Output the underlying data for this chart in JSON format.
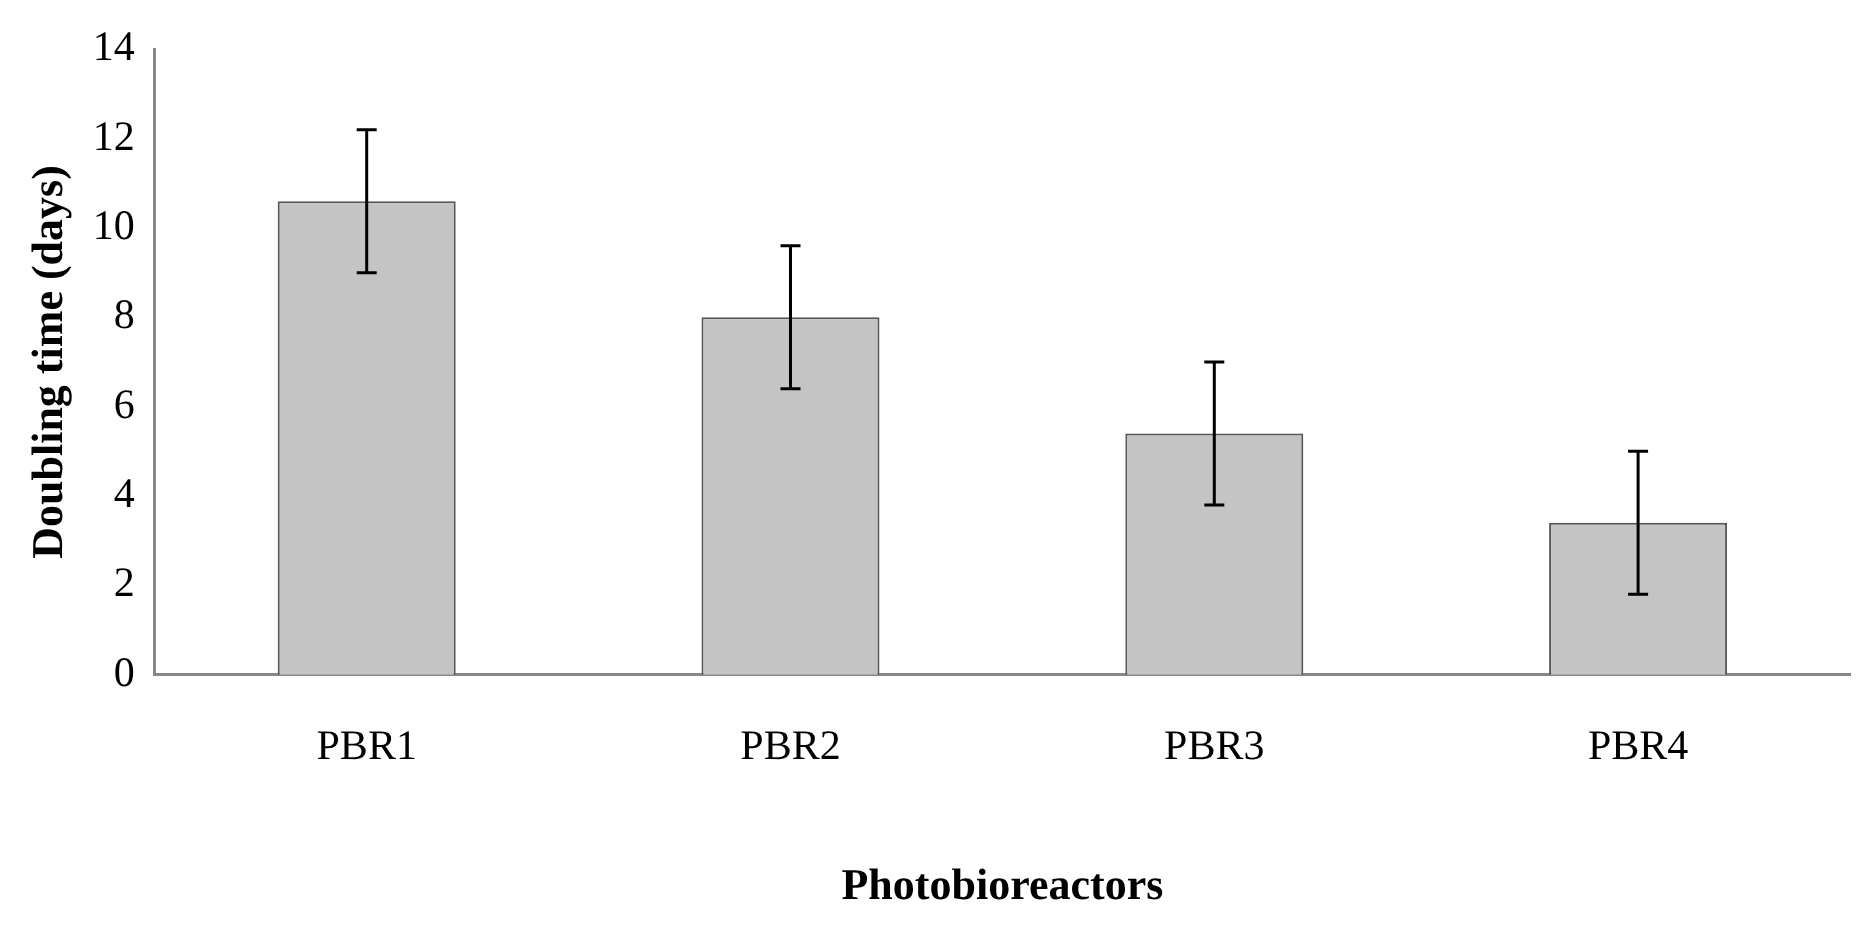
{
  "chart_data": {
    "type": "bar",
    "xlabel": "Photobioreactors",
    "ylabel": "Doubling time (days)",
    "categories": [
      "PBR1",
      "PBR2",
      "PBR3",
      "PBR4"
    ],
    "values": [
      10.6,
      8.0,
      5.4,
      3.4
    ],
    "errors": [
      1.6,
      1.6,
      1.6,
      1.6
    ],
    "color": "#c4c4c4",
    "ylim": [
      0,
      14
    ],
    "yticks": [
      0,
      2,
      4,
      6,
      8,
      10,
      12,
      14
    ],
    "grid": false,
    "legend": false
  }
}
